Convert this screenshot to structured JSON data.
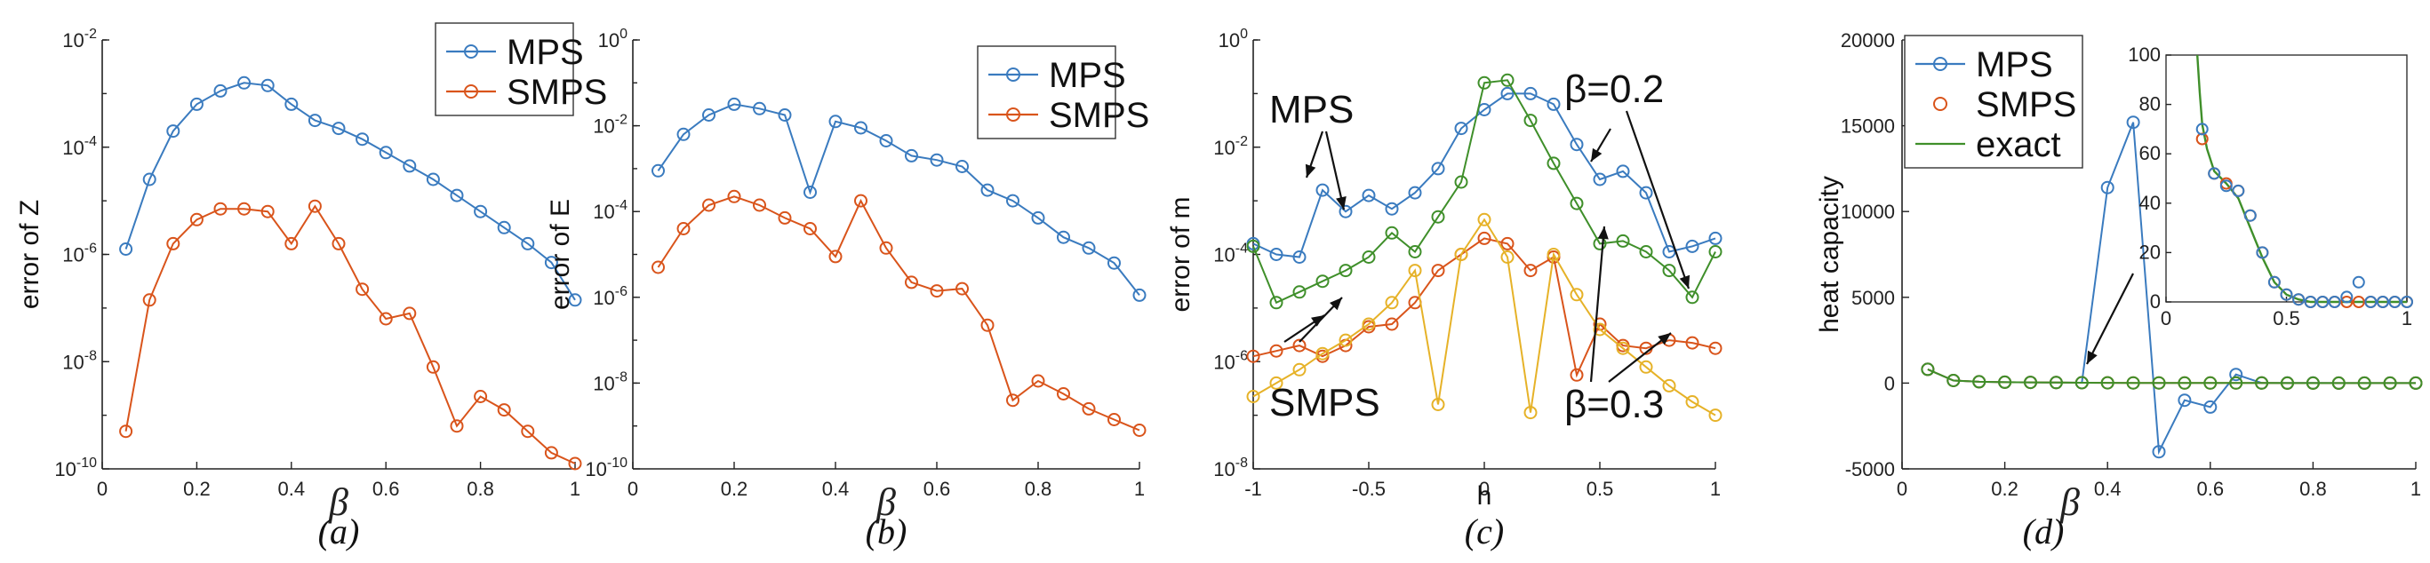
{
  "colors": {
    "blue": "#3a7bbf",
    "orange": "#d9541b",
    "gold": "#e6b228",
    "green": "#3f8f2a",
    "axis": "#222222"
  },
  "chart_data": [
    {
      "type": "line",
      "panel_label": "(a)",
      "xlabel": "β",
      "ylabel": "error of Z",
      "yscale": "log",
      "xlim": [
        0,
        1
      ],
      "ylim_exp": [
        -10,
        -2
      ],
      "xticks": [
        0,
        0.2,
        0.4,
        0.6,
        0.8,
        1
      ],
      "xtick_labels": [
        "0",
        "0.2",
        "0.4",
        "0.6",
        "0.8",
        "1"
      ],
      "yticks_exp": [
        -10,
        -8,
        -6,
        -4,
        -2
      ],
      "ytick_base": "10",
      "ytick_exps": [
        "-10",
        "-8",
        "-6",
        "-4",
        "-2"
      ],
      "legend": [
        "MPS",
        "SMPS"
      ],
      "x": [
        0.05,
        0.1,
        0.15,
        0.2,
        0.25,
        0.3,
        0.35,
        0.4,
        0.45,
        0.5,
        0.55,
        0.6,
        0.65,
        0.7,
        0.75,
        0.8,
        0.85,
        0.9,
        0.95,
        1.0
      ],
      "series": [
        {
          "name": "MPS",
          "color": "blue",
          "log10": [
            -5.9,
            -4.6,
            -3.7,
            -3.2,
            -2.95,
            -2.8,
            -2.85,
            -3.2,
            -3.5,
            -3.65,
            -3.85,
            -4.1,
            -4.35,
            -4.6,
            -4.9,
            -5.2,
            -5.5,
            -5.8,
            -6.15,
            -6.85
          ]
        },
        {
          "name": "SMPS",
          "color": "orange",
          "log10": [
            -9.3,
            -6.85,
            -5.8,
            -5.35,
            -5.15,
            -5.15,
            -5.2,
            -5.8,
            -5.1,
            -5.8,
            -6.65,
            -7.2,
            -7.1,
            -8.1,
            -9.2,
            -8.65,
            -8.9,
            -9.3,
            -9.7,
            -9.9
          ]
        }
      ]
    },
    {
      "type": "line",
      "panel_label": "(b)",
      "xlabel": "β",
      "ylabel": "error of E",
      "yscale": "log",
      "xlim": [
        0,
        1
      ],
      "ylim_exp": [
        -10,
        0
      ],
      "xticks": [
        0,
        0.2,
        0.4,
        0.6,
        0.8,
        1
      ],
      "xtick_labels": [
        "0",
        "0.2",
        "0.4",
        "0.6",
        "0.8",
        "1"
      ],
      "yticks_exp": [
        -10,
        -8,
        -6,
        -4,
        -2,
        0
      ],
      "ytick_base": "10",
      "ytick_exps": [
        "-10",
        "-8",
        "-6",
        "-4",
        "-2",
        "0"
      ],
      "legend": [
        "MPS",
        "SMPS"
      ],
      "x": [
        0.05,
        0.1,
        0.15,
        0.2,
        0.25,
        0.3,
        0.35,
        0.4,
        0.45,
        0.5,
        0.55,
        0.6,
        0.65,
        0.7,
        0.75,
        0.8,
        0.85,
        0.9,
        0.95,
        1.0
      ],
      "series": [
        {
          "name": "MPS",
          "color": "blue",
          "log10": [
            -3.05,
            -2.2,
            -1.75,
            -1.5,
            -1.6,
            -1.75,
            -3.55,
            -1.9,
            -2.05,
            -2.35,
            -2.7,
            -2.8,
            -2.95,
            -3.5,
            -3.75,
            -4.15,
            -4.6,
            -4.85,
            -5.2,
            -5.95
          ]
        },
        {
          "name": "SMPS",
          "color": "orange",
          "log10": [
            -5.3,
            -4.4,
            -3.85,
            -3.65,
            -3.85,
            -4.15,
            -4.4,
            -5.05,
            -3.75,
            -4.85,
            -5.65,
            -5.85,
            -5.8,
            -6.65,
            -8.4,
            -7.95,
            -8.25,
            -8.6,
            -8.85,
            -9.1
          ]
        }
      ]
    },
    {
      "type": "line",
      "panel_label": "(c)",
      "xlabel": "h",
      "ylabel": "error of m",
      "yscale": "log",
      "xlim": [
        -1,
        1
      ],
      "ylim_exp": [
        -8,
        0
      ],
      "xticks": [
        -1,
        -0.5,
        0,
        0.5,
        1
      ],
      "xtick_labels": [
        "-1",
        "-0.5",
        "0",
        "0.5",
        "1"
      ],
      "yticks_exp": [
        -8,
        -6,
        -4,
        -2,
        0
      ],
      "ytick_base": "10",
      "ytick_exps": [
        "-8",
        "-6",
        "-4",
        "-2",
        "0"
      ],
      "annotations": [
        "MPS",
        "SMPS",
        "β=0.2",
        "β=0.3"
      ],
      "x": [
        -1.0,
        -0.9,
        -0.8,
        -0.7,
        -0.6,
        -0.5,
        -0.4,
        -0.3,
        -0.2,
        -0.1,
        0.0,
        0.1,
        0.2,
        0.3,
        0.4,
        0.5,
        0.6,
        0.7,
        0.8,
        0.9,
        1.0
      ],
      "series": [
        {
          "name": "MPS β=0.2",
          "color": "blue",
          "log10": [
            -3.8,
            -4.0,
            -4.05,
            -2.8,
            -3.2,
            -2.9,
            -3.15,
            -2.85,
            -2.4,
            -1.65,
            -1.3,
            -1.0,
            -1.0,
            -1.2,
            -1.95,
            -2.6,
            -2.45,
            -2.85,
            -3.95,
            -3.85,
            -3.7
          ]
        },
        {
          "name": "MPS β=0.3",
          "color": "green",
          "log10": [
            -3.85,
            -4.9,
            -4.7,
            -4.5,
            -4.3,
            -4.05,
            -3.6,
            -3.95,
            -3.3,
            -2.65,
            -0.8,
            -0.75,
            -1.5,
            -2.3,
            -3.05,
            -3.8,
            -3.75,
            -3.95,
            -4.3,
            -4.8,
            -3.95
          ]
        },
        {
          "name": "SMPS β=0.2",
          "color": "orange",
          "log10": [
            -5.9,
            -5.8,
            -5.7,
            -5.9,
            -5.7,
            -5.35,
            -5.3,
            -4.9,
            -4.3,
            -4.0,
            -3.7,
            -3.8,
            -4.3,
            -4.05,
            -6.25,
            -5.3,
            -5.7,
            -5.75,
            -5.6,
            -5.65,
            -5.75
          ]
        },
        {
          "name": "SMPS β=0.3",
          "color": "gold",
          "log10": [
            -6.65,
            -6.4,
            -6.15,
            -5.85,
            -5.6,
            -5.3,
            -4.9,
            -4.3,
            -6.8,
            -4.0,
            -3.35,
            -4.05,
            -6.95,
            -4.0,
            -4.75,
            -5.4,
            -5.75,
            -6.1,
            -6.45,
            -6.75,
            -7.0
          ]
        }
      ]
    },
    {
      "type": "line",
      "panel_label": "(d)",
      "xlabel": "β",
      "ylabel": "heat capacity",
      "yscale": "linear",
      "xlim": [
        0,
        1
      ],
      "ylim": [
        -5000,
        20000
      ],
      "xticks": [
        0,
        0.2,
        0.4,
        0.6,
        0.8,
        1
      ],
      "xtick_labels": [
        "0",
        "0.2",
        "0.4",
        "0.6",
        "0.8",
        "1"
      ],
      "yticks": [
        -5000,
        0,
        5000,
        10000,
        15000,
        20000
      ],
      "ytick_labels": [
        "-5000",
        "0",
        "5000",
        "10000",
        "15000",
        "20000"
      ],
      "legend": [
        "MPS",
        "SMPS",
        "exact"
      ],
      "x": [
        0.05,
        0.1,
        0.15,
        0.2,
        0.25,
        0.3,
        0.35,
        0.4,
        0.45,
        0.5,
        0.55,
        0.6,
        0.65,
        0.7,
        0.75,
        0.8,
        0.85,
        0.9,
        0.95,
        1.0
      ],
      "series": [
        {
          "name": "MPS",
          "color": "blue",
          "values": [
            800,
            150,
            80,
            50,
            40,
            30,
            20,
            11400,
            15200,
            -4000,
            -1000,
            -1400,
            500,
            10,
            5,
            3,
            2,
            1,
            1,
            0
          ]
        },
        {
          "name": "SMPS",
          "color": "orange",
          "values": [
            800,
            150,
            80,
            50,
            40,
            30,
            20,
            15,
            10,
            8,
            6,
            5,
            4,
            3,
            2,
            2,
            1,
            1,
            1,
            0
          ]
        },
        {
          "name": "exact",
          "color": "green",
          "values": [
            800,
            150,
            80,
            50,
            40,
            30,
            20,
            15,
            10,
            8,
            6,
            5,
            4,
            3,
            2,
            2,
            1,
            1,
            1,
            0
          ]
        }
      ],
      "inset": {
        "xlim": [
          0,
          1
        ],
        "ylim": [
          0,
          100
        ],
        "xticks": [
          0,
          0.5,
          1
        ],
        "xtick_labels": [
          "0",
          "0.5",
          "1"
        ],
        "yticks": [
          0,
          20,
          40,
          60,
          80,
          100
        ],
        "ytick_labels": [
          "0",
          "20",
          "40",
          "60",
          "80",
          "100"
        ],
        "exact_x": [
          0.13,
          0.14,
          0.15,
          0.17,
          0.2,
          0.25,
          0.3,
          0.35,
          0.4,
          0.45,
          0.5,
          0.55,
          0.6,
          0.65,
          0.7,
          0.75,
          0.8,
          0.85,
          0.9,
          0.95,
          1.0
        ],
        "exact_y": [
          100,
          85,
          72,
          62,
          53,
          48,
          42,
          30,
          18,
          8,
          3,
          1,
          0,
          0,
          0,
          0,
          0,
          0,
          0,
          0,
          0
        ],
        "x": [
          0.15,
          0.2,
          0.25,
          0.3,
          0.35,
          0.4,
          0.45,
          0.5,
          0.55,
          0.6,
          0.65,
          0.7,
          0.75,
          0.8,
          0.85,
          0.9,
          0.95,
          1.0
        ],
        "smps": [
          66,
          52,
          48,
          45,
          35,
          20,
          8,
          3,
          1,
          0,
          0,
          0,
          0,
          0,
          0,
          0,
          0,
          0
        ],
        "mps": [
          70,
          52,
          47,
          45,
          35,
          20,
          8,
          3,
          1,
          0,
          0,
          0,
          2,
          8,
          0,
          0,
          0,
          0
        ]
      }
    }
  ]
}
